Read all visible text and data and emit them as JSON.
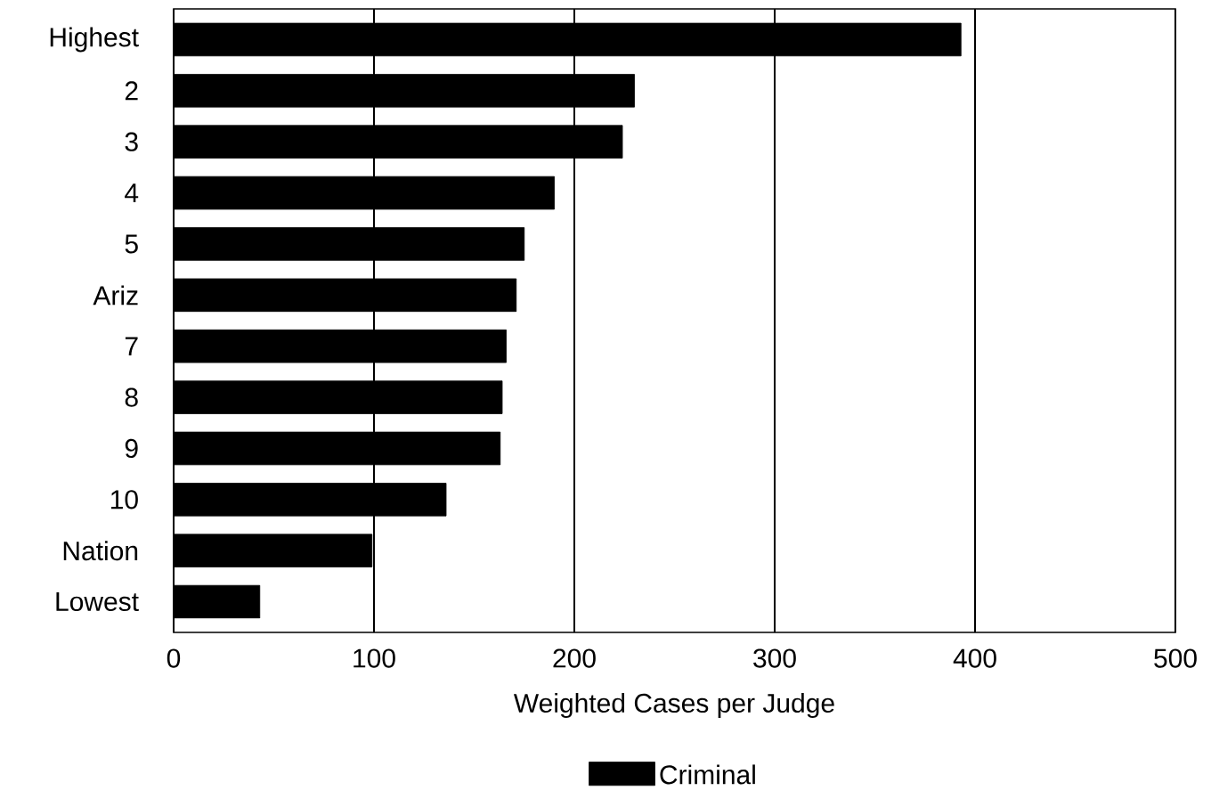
{
  "chart_data": {
    "type": "bar",
    "orientation": "horizontal",
    "xlabel": "Weighted Cases per Judge",
    "categories": [
      "Highest",
      "2",
      "3",
      "4",
      "5",
      "Ariz",
      "7",
      "8",
      "9",
      "10",
      "Nation",
      "Lowest"
    ],
    "series": [
      {
        "name": "Criminal",
        "color": "#000000",
        "values": [
          393,
          230,
          224,
          190,
          175,
          171,
          166,
          164,
          163,
          136,
          99,
          43
        ]
      }
    ],
    "xlim": [
      0,
      500
    ],
    "xticks": [
      0,
      100,
      200,
      300,
      400,
      500
    ],
    "grid": "x",
    "legend": "bottom"
  }
}
